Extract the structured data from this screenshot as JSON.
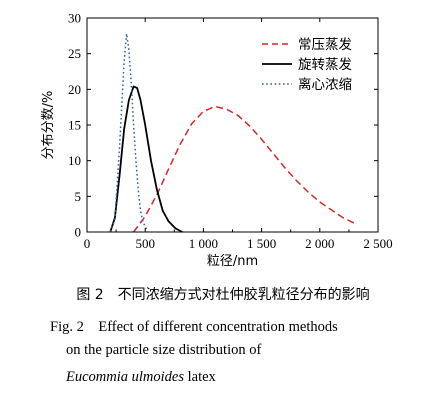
{
  "chart_data": {
    "type": "line",
    "xlabel": "粒径/nm",
    "ylabel": "分布分数/%",
    "xlim": [
      0,
      2500
    ],
    "ylim": [
      0,
      30
    ],
    "x_ticks": [
      0,
      500,
      1000,
      1500,
      2000,
      2500
    ],
    "x_tick_labels": [
      "0",
      "500",
      "1 000",
      "1 500",
      "2 000",
      "2 500"
    ],
    "y_ticks": [
      0,
      5,
      10,
      15,
      20,
      25,
      30
    ],
    "y_tick_labels": [
      "0",
      "5",
      "10",
      "15",
      "20",
      "25",
      "30"
    ],
    "legend_position": "top-right",
    "series": [
      {
        "name": "常压蒸发",
        "color": "#d62728",
        "style": "dashed",
        "points": [
          [
            400,
            0
          ],
          [
            500,
            2.2
          ],
          [
            600,
            5.2
          ],
          [
            700,
            8.8
          ],
          [
            800,
            12.3
          ],
          [
            900,
            15.2
          ],
          [
            1000,
            16.9
          ],
          [
            1100,
            17.6
          ],
          [
            1200,
            17.2
          ],
          [
            1300,
            16.3
          ],
          [
            1400,
            14.8
          ],
          [
            1500,
            13.0
          ],
          [
            1600,
            11.0
          ],
          [
            1700,
            9.0
          ],
          [
            1800,
            7.2
          ],
          [
            1900,
            5.6
          ],
          [
            2000,
            4.2
          ],
          [
            2100,
            3.1
          ],
          [
            2200,
            2.0
          ],
          [
            2300,
            1.2
          ]
        ]
      },
      {
        "name": "旋转蒸发",
        "color": "#000000",
        "style": "solid",
        "points": [
          [
            200,
            0
          ],
          [
            240,
            2.0
          ],
          [
            280,
            8.0
          ],
          [
            320,
            14.5
          ],
          [
            360,
            18.5
          ],
          [
            400,
            20.4
          ],
          [
            430,
            20.2
          ],
          [
            460,
            18.5
          ],
          [
            500,
            15.0
          ],
          [
            550,
            10.0
          ],
          [
            600,
            6.0
          ],
          [
            650,
            3.0
          ],
          [
            700,
            1.5
          ],
          [
            760,
            0.5
          ],
          [
            820,
            0
          ]
        ]
      },
      {
        "name": "离心浓缩",
        "color": "#3a5fa8",
        "style": "dotted",
        "points": [
          [
            200,
            0
          ],
          [
            240,
            1.8
          ],
          [
            280,
            12.0
          ],
          [
            320,
            24.0
          ],
          [
            340,
            27.8
          ],
          [
            360,
            25.5
          ],
          [
            380,
            21.0
          ],
          [
            400,
            15.0
          ],
          [
            420,
            10.0
          ],
          [
            440,
            6.0
          ],
          [
            460,
            3.0
          ],
          [
            480,
            1.5
          ],
          [
            520,
            0
          ]
        ]
      }
    ]
  },
  "caption": {
    "cn": "图 2　不同浓缩方式对杜仲胶乳粒径分布的影响",
    "en_line1": "Fig. 2　Effect of different concentration methods",
    "en_line2": "on the particle size distribution of",
    "en_line3_italic": "Eucommia ulmoides",
    "en_line3_rest": " latex"
  }
}
